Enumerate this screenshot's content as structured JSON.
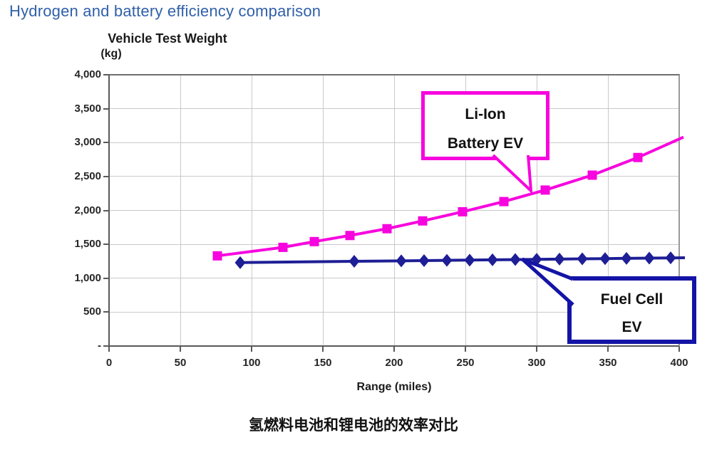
{
  "page": {
    "title": "Hydrogen and battery efficiency comparison",
    "caption": "氢燃料电池和锂电池的效率对比"
  },
  "chart_data": {
    "type": "line",
    "title": "Hydrogen and battery efficiency comparison",
    "grid": "on",
    "y_axis": {
      "label": "Vehicle Test Weight",
      "unit": "(kg)",
      "min": 0,
      "max": 4000,
      "step": 500,
      "tick_labels": [
        "4,000",
        "3,500",
        "3,000",
        "2,500",
        "2,000",
        "1,500",
        "1,000",
        "500",
        "-"
      ]
    },
    "x_axis": {
      "label": "Range (miles)",
      "min": 0,
      "max": 400,
      "step": 50,
      "tick_labels": [
        "0",
        "50",
        "100",
        "150",
        "200",
        "250",
        "300",
        "350",
        "400"
      ]
    },
    "series": [
      {
        "name": "Li-Ion Battery EV",
        "color": "#F704DE",
        "marker": "square",
        "points": [
          [
            76,
            1330
          ],
          [
            122,
            1455
          ],
          [
            144,
            1540
          ],
          [
            169,
            1630
          ],
          [
            195,
            1730
          ],
          [
            220,
            1845
          ],
          [
            248,
            1980
          ],
          [
            277,
            2130
          ],
          [
            306,
            2300
          ],
          [
            339,
            2520
          ],
          [
            371,
            2780
          ]
        ],
        "line_end": [
          403,
          3080
        ]
      },
      {
        "name": "Fuel Cell EV",
        "color": "#1E1E96",
        "marker": "diamond",
        "points": [
          [
            92,
            1230
          ],
          [
            172,
            1249
          ],
          [
            205,
            1256
          ],
          [
            221,
            1260
          ],
          [
            237,
            1264
          ],
          [
            253,
            1267
          ],
          [
            269,
            1271
          ],
          [
            285,
            1275
          ],
          [
            300,
            1278
          ],
          [
            316,
            1282
          ],
          [
            332,
            1286
          ],
          [
            348,
            1289
          ],
          [
            363,
            1293
          ],
          [
            379,
            1297
          ],
          [
            394,
            1300
          ]
        ],
        "line_end": [
          404,
          1302
        ]
      }
    ],
    "annotations": [
      {
        "lines": [
          "Li-Ion",
          "Battery EV"
        ],
        "color": "#F704DE",
        "points_to": [
          296,
          2310
        ]
      },
      {
        "lines": [
          "Fuel Cell",
          "EV"
        ],
        "color": "#1414A6",
        "points_to": [
          290,
          1280
        ]
      }
    ]
  }
}
